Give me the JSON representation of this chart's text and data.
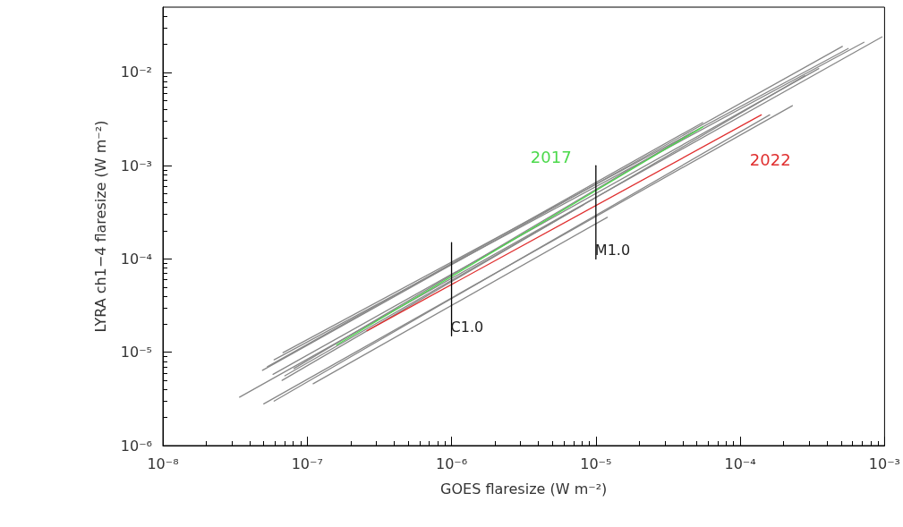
{
  "chart_data": {
    "type": "line",
    "xlabel": "GOES flaresize (W m⁻²)",
    "ylabel": "LYRA ch1−4 flaresize (W m⁻²)",
    "log": "xy",
    "grid": false,
    "legend": false,
    "marker": "none",
    "line_style": "solid",
    "xlim": [
      1e-08,
      0.001
    ],
    "ylim": [
      1e-06,
      0.05
    ],
    "xticks": [
      {
        "value": 1e-08,
        "label": "10⁻⁸"
      },
      {
        "value": 1e-07,
        "label": "10⁻⁷"
      },
      {
        "value": 1e-06,
        "label": "10⁻⁶"
      },
      {
        "value": 1e-05,
        "label": "10⁻⁵"
      },
      {
        "value": 0.0001,
        "label": "10⁻⁴"
      },
      {
        "value": 0.001,
        "label": "10⁻³"
      }
    ],
    "yticks": [
      {
        "value": 1e-06,
        "label": "10⁻⁶"
      },
      {
        "value": 1e-05,
        "label": "10⁻⁵"
      },
      {
        "value": 0.0001,
        "label": "10⁻⁴"
      },
      {
        "value": 0.001,
        "label": "10⁻³"
      },
      {
        "value": 0.01,
        "label": "10⁻²"
      }
    ],
    "series": [
      {
        "color": "#888888",
        "x": [
          3.4e-08,
          0.00096
        ],
        "values": [
          3.3e-06,
          0.024
        ]
      },
      {
        "color": "#888888",
        "x": [
          5e-08,
          0.00023
        ],
        "values": [
          2.8e-06,
          0.0044
        ]
      },
      {
        "color": "#888888",
        "x": [
          5.9e-08,
          0.00016
        ],
        "values": [
          3e-06,
          0.0035
        ]
      },
      {
        "color": "#888888",
        "x": [
          1.1e-07,
          1.2e-05
        ],
        "values": [
          4.6e-06,
          0.00028
        ]
      },
      {
        "color": "#888888",
        "x": [
          4.9e-08,
          0.00051
        ],
        "values": [
          6.4e-06,
          0.019
        ]
      },
      {
        "color": "#888888",
        "x": [
          5.9e-08,
          0.00072
        ],
        "values": [
          8.3e-06,
          0.021
        ]
      },
      {
        "color": "#888888",
        "x": [
          6.8e-08,
          0.00056
        ],
        "values": [
          9.9e-06,
          0.018
        ]
      },
      {
        "color": "#888888",
        "x": [
          5.8e-08,
          0.00035
        ],
        "values": [
          5.8e-06,
          0.011
        ]
      },
      {
        "color": "#888888",
        "x": [
          6.7e-08,
          0.00028
        ],
        "values": [
          5e-06,
          0.0092
        ]
      },
      {
        "color": "#888888",
        "x": [
          5.3e-08,
          5.5e-05
        ],
        "values": [
          7e-06,
          0.0029
        ]
      },
      {
        "color": "#888888",
        "x": [
          7e-08,
          8.2e-06
        ],
        "values": [
          5.6e-06,
          0.00038
        ]
      },
      {
        "color": "#888888",
        "x": [
          8.1e-08,
          4.7e-05
        ],
        "values": [
          6.7e-06,
          0.0023
        ]
      },
      {
        "name": "2017",
        "color": "#4cd94c",
        "x": [
          1.6e-07,
          5.5e-05
        ],
        "values": [
          1.2e-05,
          0.0026
        ]
      },
      {
        "name": "2022",
        "color": "#e03030",
        "x": [
          2.6e-07,
          0.00014
        ],
        "values": [
          1.7e-05,
          0.0035
        ]
      },
      {
        "name": "C1.0",
        "color": "#000000",
        "x": [
          1e-06,
          1e-06
        ],
        "values": [
          1.5e-05,
          0.00015
        ]
      },
      {
        "name": "M1.0",
        "color": "#000000",
        "x": [
          1e-05,
          1e-05
        ],
        "values": [
          0.0001,
          0.001
        ]
      }
    ]
  }
}
